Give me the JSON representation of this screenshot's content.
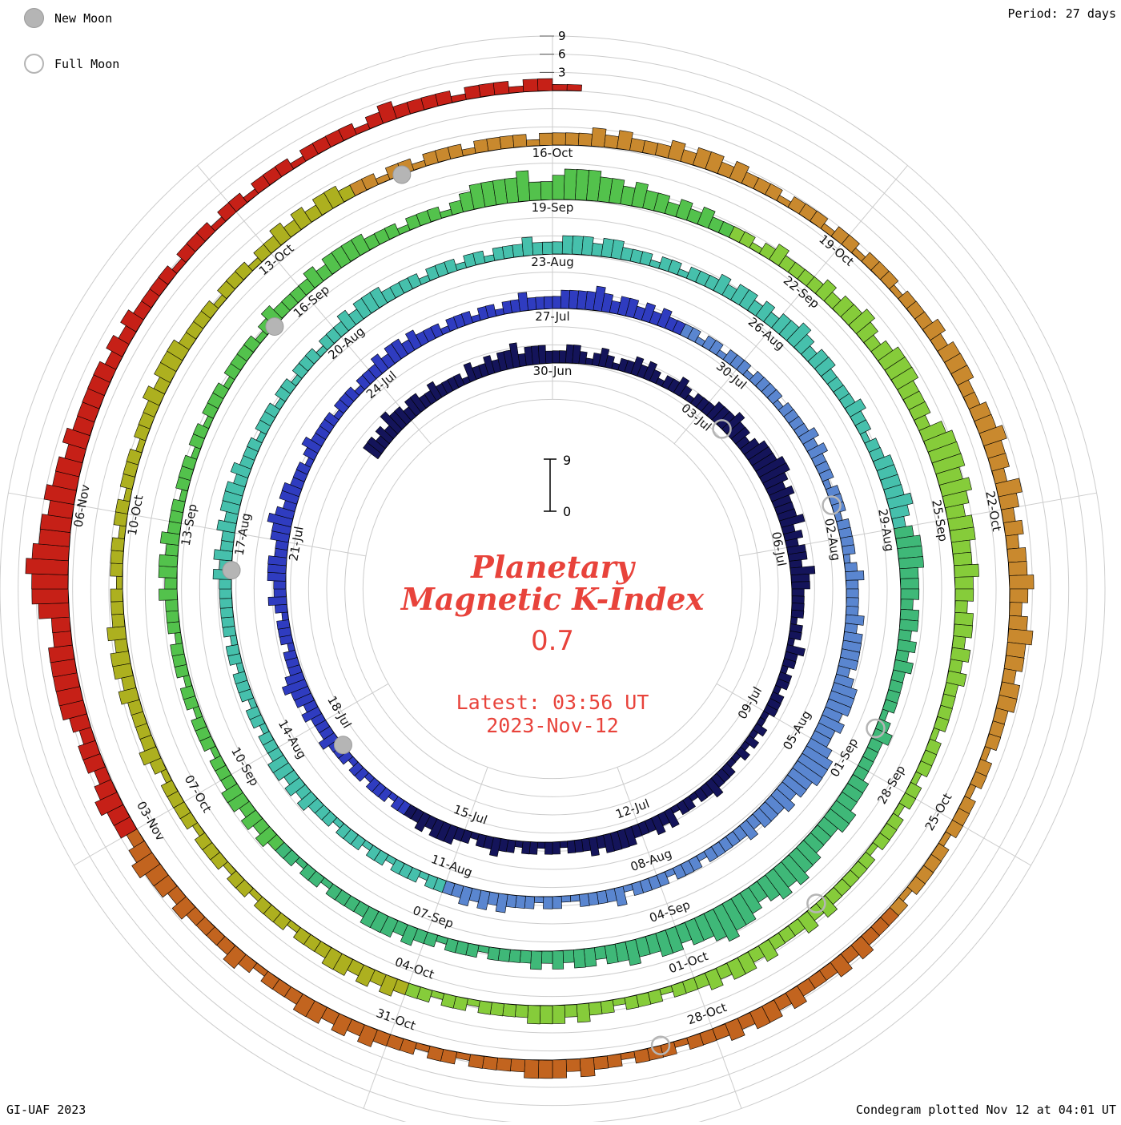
{
  "meta": {
    "title_line1": "Planetary",
    "title_line2": "Magnetic K-Index",
    "current_value": "0.7",
    "latest_line1": "Latest: 03:56 UT",
    "latest_line2": "2023-Nov-12",
    "period_label": "Period: 27 days",
    "credit": "GI-UAF 2023",
    "plotted_label": "Condegram plotted Nov 12 at 04:01 UT",
    "legend": {
      "new_moon": "New Moon",
      "full_moon": "Full Moon"
    },
    "axis_ticks": [
      "3",
      "6",
      "9"
    ],
    "scale_top_label": "9",
    "scale_bottom_label": "0"
  },
  "colors": {
    "accent_red": "#e8433b",
    "grid": "#cccccc",
    "bar_outline": "#000000",
    "moon_gray": "#b5b5b5"
  },
  "chart_data": {
    "type": "bar",
    "variant": "condegram-spiral-polar",
    "title": "Planetary Magnetic K-Index",
    "rotation_days": 27,
    "interval_hours": 3,
    "k_scale": [
      0,
      9
    ],
    "grid_step_k": 3,
    "start_date": "2023-06-26",
    "end_datetime": "2023-11-12T06:00 UT",
    "rotation_epoch": "2023-06-30",
    "rotation_starts_at_top": [
      "2023-06-30",
      "2023-07-27",
      "2023-08-23",
      "2023-09-19",
      "2023-10-16",
      "2023-11-12"
    ],
    "legend_position": "top-left",
    "date_labels": [
      {
        "text": "30-Jun",
        "date": "2023-06-30"
      },
      {
        "text": "03-Jul",
        "date": "2023-07-03"
      },
      {
        "text": "06-Jul",
        "date": "2023-07-06"
      },
      {
        "text": "09-Jul",
        "date": "2023-07-09"
      },
      {
        "text": "12-Jul",
        "date": "2023-07-12"
      },
      {
        "text": "15-Jul",
        "date": "2023-07-15"
      },
      {
        "text": "18-Jul",
        "date": "2023-07-18"
      },
      {
        "text": "21-Jul",
        "date": "2023-07-21"
      },
      {
        "text": "24-Jul",
        "date": "2023-07-24"
      },
      {
        "text": "27-Jul",
        "date": "2023-07-27"
      },
      {
        "text": "30-Jul",
        "date": "2023-07-30"
      },
      {
        "text": "02-Aug",
        "date": "2023-08-02"
      },
      {
        "text": "05-Aug",
        "date": "2023-08-05"
      },
      {
        "text": "08-Aug",
        "date": "2023-08-08"
      },
      {
        "text": "11-Aug",
        "date": "2023-08-11"
      },
      {
        "text": "14-Aug",
        "date": "2023-08-14"
      },
      {
        "text": "17-Aug",
        "date": "2023-08-17"
      },
      {
        "text": "20-Aug",
        "date": "2023-08-20"
      },
      {
        "text": "23-Aug",
        "date": "2023-08-23"
      },
      {
        "text": "26-Aug",
        "date": "2023-08-26"
      },
      {
        "text": "29-Aug",
        "date": "2023-08-29"
      },
      {
        "text": "01-Sep",
        "date": "2023-09-01"
      },
      {
        "text": "04-Sep",
        "date": "2023-09-04"
      },
      {
        "text": "07-Sep",
        "date": "2023-09-07"
      },
      {
        "text": "10-Sep",
        "date": "2023-09-10"
      },
      {
        "text": "13-Sep",
        "date": "2023-09-13"
      },
      {
        "text": "16-Sep",
        "date": "2023-09-16"
      },
      {
        "text": "19-Sep",
        "date": "2023-09-19"
      },
      {
        "text": "22-Sep",
        "date": "2023-09-22"
      },
      {
        "text": "25-Sep",
        "date": "2023-09-25"
      },
      {
        "text": "28-Sep",
        "date": "2023-09-28"
      },
      {
        "text": "01-Oct",
        "date": "2023-10-01"
      },
      {
        "text": "04-Oct",
        "date": "2023-10-04"
      },
      {
        "text": "07-Oct",
        "date": "2023-10-07"
      },
      {
        "text": "10-Oct",
        "date": "2023-10-10"
      },
      {
        "text": "13-Oct",
        "date": "2023-10-13"
      },
      {
        "text": "16-Oct",
        "date": "2023-10-16"
      },
      {
        "text": "19-Oct",
        "date": "2023-10-19"
      },
      {
        "text": "22-Oct",
        "date": "2023-10-22"
      },
      {
        "text": "25-Oct",
        "date": "2023-10-25"
      },
      {
        "text": "28-Oct",
        "date": "2023-10-28"
      },
      {
        "text": "31-Oct",
        "date": "2023-10-31"
      },
      {
        "text": "03-Nov",
        "date": "2023-11-03"
      },
      {
        "text": "06-Nov",
        "date": "2023-11-06"
      }
    ],
    "color_segments": [
      {
        "start": "2023-06-26",
        "color": "#14145a"
      },
      {
        "start": "2023-07-16",
        "color": "#2f3cc0"
      },
      {
        "start": "2023-07-29",
        "color": "#5a86d0"
      },
      {
        "start": "2023-08-11",
        "color": "#46c0ac"
      },
      {
        "start": "2023-08-29",
        "color": "#3fb878"
      },
      {
        "start": "2023-09-09",
        "color": "#53c24c"
      },
      {
        "start": "2023-09-21",
        "color": "#86cc3a"
      },
      {
        "start": "2023-10-04",
        "color": "#adb01f"
      },
      {
        "start": "2023-10-14",
        "color": "#c9892e"
      },
      {
        "start": "2023-10-26",
        "color": "#c2641f"
      },
      {
        "start": "2023-11-03",
        "color": "#c62017"
      }
    ],
    "moons": {
      "new": [
        "2023-07-17",
        "2023-08-16",
        "2023-09-15",
        "2023-10-14"
      ],
      "full": [
        "2023-07-03",
        "2023-08-01",
        "2023-08-31",
        "2023-09-29",
        "2023-10-28"
      ]
    },
    "k_days": [
      "33232433",
      "23322322",
      "22132232",
      "33423332",
      "22332123",
      "21223232",
      "12232122",
      "23334332",
      "34445543",
      "43334232",
      "33243322",
      "22122132",
      "21221222",
      "11212121",
      "12223221",
      "22132322",
      "23333232",
      "22122122",
      "12232212",
      "23332322",
      "22122212",
      "21222322",
      "23233432",
      "22122212",
      "32233322",
      "33432332",
      "22123222",
      "21222122",
      "23233232",
      "22122212",
      "21223222",
      "23333432",
      "33232322",
      "22122122",
      "21222212",
      "22232322",
      "21222122",
      "22123222",
      "23233332",
      "34443433",
      "45554434",
      "33323222",
      "22122212",
      "22213222",
      "21122122",
      "23232322",
      "22122212",
      "21222122",
      "23232332",
      "22122122",
      "21221222",
      "22232322",
      "32333232",
      "22122212",
      "21222122",
      "23233322",
      "22122212",
      "21222322",
      "23332332",
      "22122122",
      "23233232",
      "33432332",
      "22232212",
      "23333432",
      "34443332",
      "33232322",
      "22123222",
      "23334433",
      "34454543",
      "45565443",
      "44334332",
      "33232322",
      "22122212",
      "23233322",
      "22122122",
      "23232332",
      "22122212",
      "21222122",
      "23233232",
      "22122212",
      "21222122",
      "22123222",
      "23233332",
      "22122212",
      "34444533",
      "45554434",
      "33232322",
      "22123222",
      "23233432",
      "34443332",
      "45554543",
      "44334332",
      "33232322",
      "22122212",
      "21222122",
      "22232322",
      "23233232",
      "22122212",
      "23233322",
      "22122122",
      "23232332",
      "22122212",
      "21222122",
      "22123222",
      "23233232",
      "22122212",
      "21222122",
      "23233322",
      "22122212",
      "23232332",
      "22122122",
      "21222212",
      "22232322",
      "23233232",
      "22122212",
      "21222122",
      "23233322",
      "33433243",
      "23233432",
      "34332332",
      "22122122",
      "21222212",
      "22232322",
      "23233232",
      "22122212",
      "23233322",
      "22122122",
      "23232332",
      "22123222",
      "23233432",
      "33432332",
      "34444433",
      "56676554",
      "54434333",
      "33232322",
      "22122212",
      "21222122",
      "22123222",
      "21222122",
      "11"
    ]
  }
}
